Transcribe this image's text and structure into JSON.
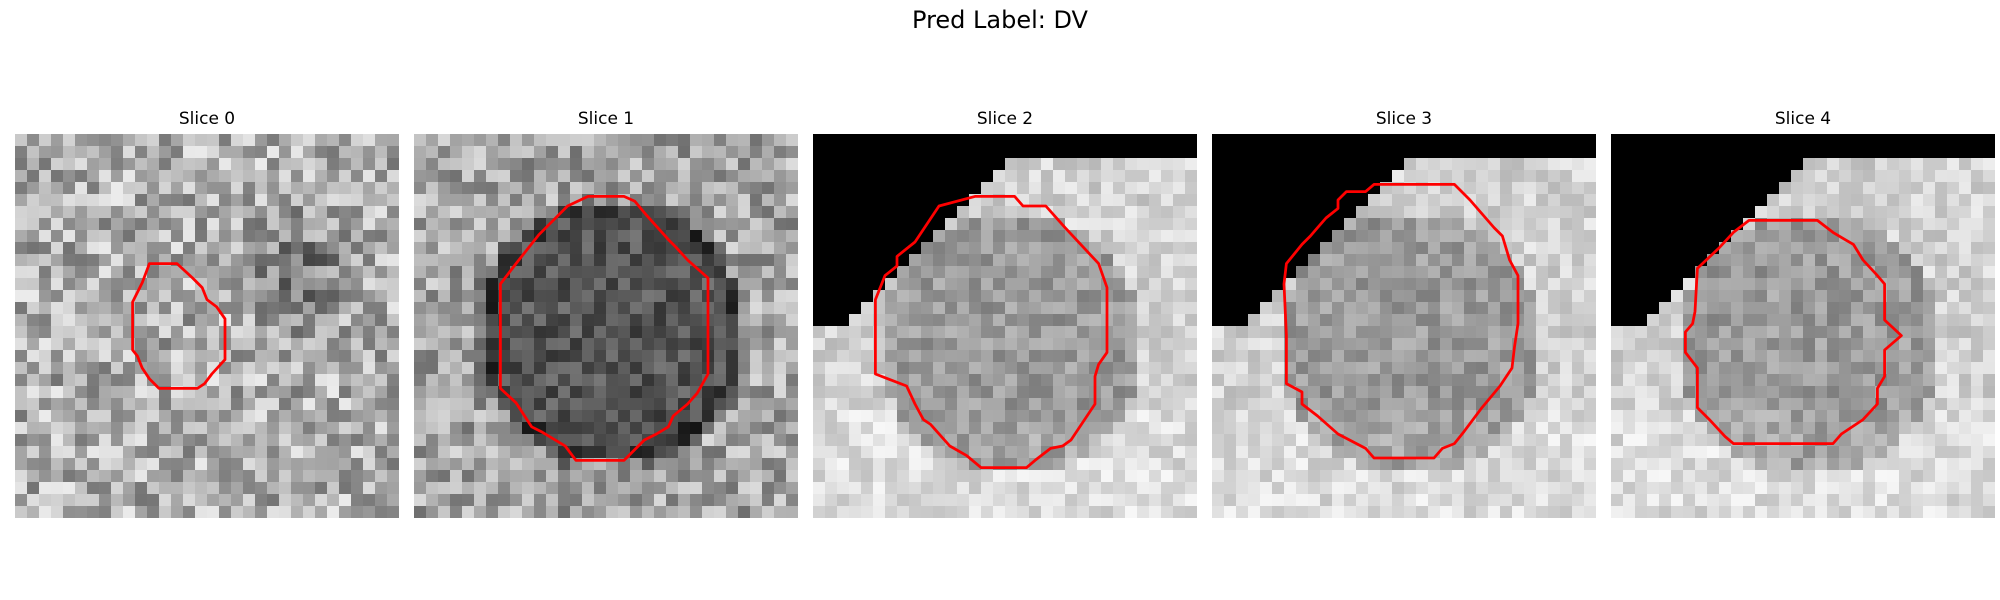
{
  "figure": {
    "title": "Pred Label: DV"
  },
  "colors": {
    "contour": "#ff0000",
    "mask": "#000000"
  },
  "slices": [
    {
      "title": "Slice 0",
      "texture": "fine-noise",
      "mask": "none",
      "contour": "small-octagon"
    },
    {
      "title": "Slice 1",
      "texture": "dark-blob",
      "mask": "none",
      "contour": "large-octagon"
    },
    {
      "title": "Slice 2",
      "texture": "bright-gradient",
      "mask": "top-left-corner",
      "contour": "large-octagon"
    },
    {
      "title": "Slice 3",
      "texture": "bright-gradient",
      "mask": "top-left-corner",
      "contour": "large-octagon"
    },
    {
      "title": "Slice 4",
      "texture": "bright-gradient",
      "mask": "top-left-corner",
      "contour": "medium-octagon"
    }
  ]
}
